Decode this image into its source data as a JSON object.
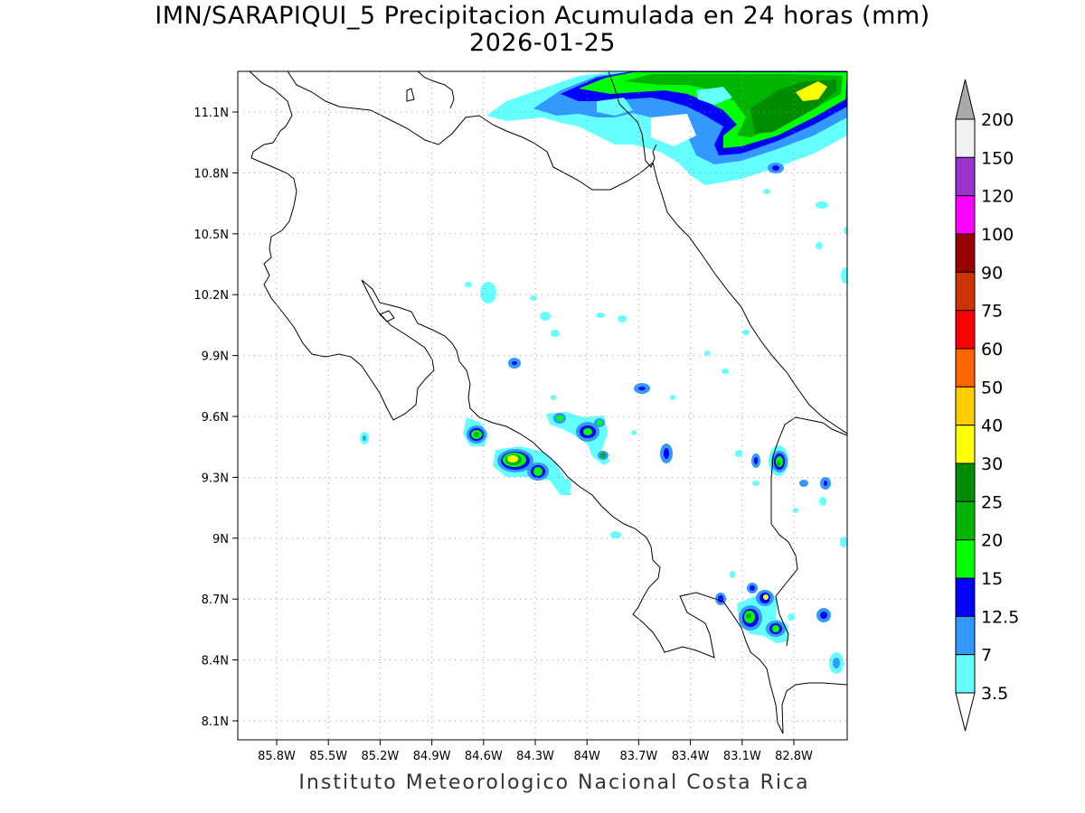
{
  "title": {
    "line1": "IMN/SARAPIQUI_5 Precipitacion Acumulada en 24 horas (mm)",
    "line2": "2026-01-25"
  },
  "credit": "Instituto Meteorologico Nacional Costa Rica",
  "map": {
    "lon_range": [
      -86.0,
      -82.35
    ],
    "lat_range": [
      8.0,
      11.3
    ],
    "lon_ticks": [
      "85.8W",
      "85.5W",
      "85.2W",
      "84.9W",
      "84.6W",
      "84.3W",
      "84W",
      "83.7W",
      "83.4W",
      "83.1W",
      "82.8W"
    ],
    "lat_ticks": [
      "11.1N",
      "10.8N",
      "10.5N",
      "10.2N",
      "9.9N",
      "9.6N",
      "9.3N",
      "9N",
      "8.7N",
      "8.4N",
      "8.1N"
    ],
    "grid": "dotted"
  },
  "colorbar": {
    "levels": [
      "200",
      "150",
      "120",
      "100",
      "90",
      "75",
      "60",
      "50",
      "40",
      "30",
      "25",
      "20",
      "15",
      "12.5",
      "7",
      "3.5"
    ],
    "colors": [
      "#f2f2f2",
      "#9933cc",
      "#ff00ff",
      "#990000",
      "#cc3300",
      "#ff0000",
      "#ff6600",
      "#ffcc00",
      "#ffff00",
      "#008c00",
      "#00b400",
      "#00ff00",
      "#0000ff",
      "#3399ff",
      "#66ffff"
    ],
    "over_color": "#aaaaaa",
    "under_color": "#ffffff"
  }
}
